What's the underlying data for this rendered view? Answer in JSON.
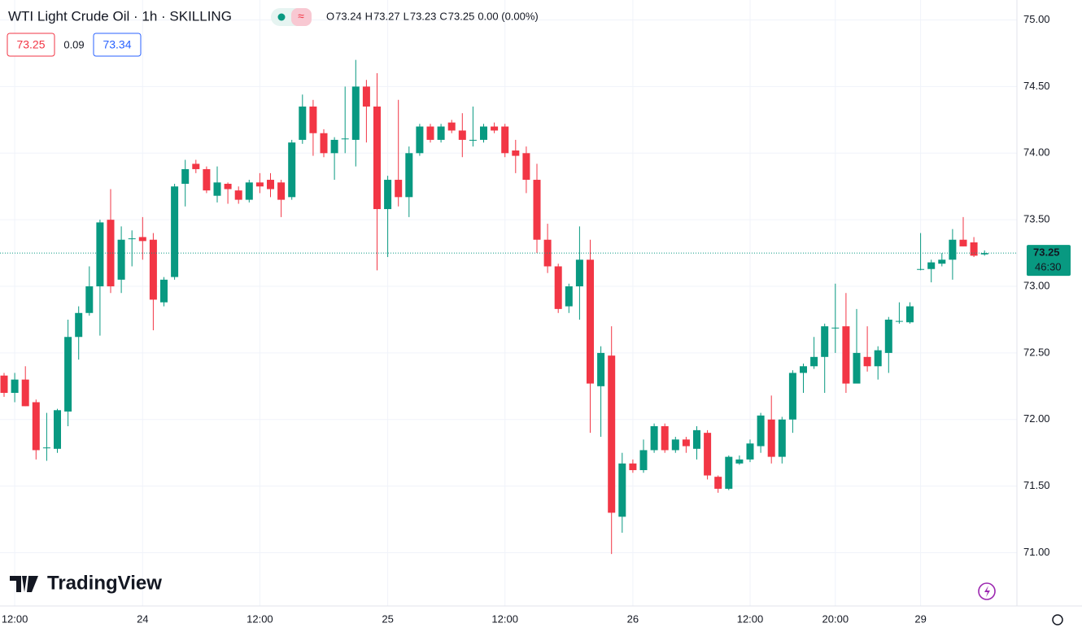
{
  "chart_data": {
    "type": "candlestick",
    "title": "WTI Light Crude Oil · 1h · SKILLING",
    "ohlc_legend": [
      {
        "key": "O",
        "value": "73.24"
      },
      {
        "key": "H",
        "value": "73.27"
      },
      {
        "key": "L",
        "value": "73.23"
      },
      {
        "key": "C",
        "value": "73.25"
      }
    ],
    "change": "0.00 (0.00%)",
    "bid": "73.25",
    "spread": "0.09",
    "ask": "73.34",
    "brand": "TradingView",
    "last_price": {
      "value": 73.25,
      "label": "73.25"
    },
    "countdown": "46:30",
    "up_color": "#089981",
    "down_color": "#f23645",
    "grid": true,
    "categories": [
      null,
      "12:00",
      null,
      null,
      null,
      null,
      null,
      null,
      null,
      null,
      null,
      null,
      null,
      "24",
      null,
      null,
      null,
      null,
      null,
      null,
      null,
      null,
      null,
      null,
      "12:00",
      null,
      null,
      null,
      null,
      null,
      null,
      null,
      null,
      null,
      null,
      null,
      "25",
      null,
      null,
      null,
      null,
      null,
      null,
      null,
      null,
      null,
      null,
      "12:00",
      null,
      null,
      null,
      null,
      null,
      null,
      null,
      null,
      null,
      null,
      null,
      "26",
      null,
      null,
      null,
      null,
      null,
      null,
      null,
      null,
      null,
      null,
      "12:00",
      null,
      null,
      null,
      null,
      null,
      null,
      null,
      "20:00",
      null,
      null,
      null,
      null,
      null,
      null,
      null,
      "29",
      null,
      null,
      null,
      null,
      null,
      null
    ],
    "open": [
      72.33,
      72.2,
      72.3,
      72.13,
      71.79,
      71.78,
      72.06,
      72.62,
      72.8,
      73.0,
      73.5,
      73.05,
      73.36,
      73.37,
      73.35,
      72.88,
      73.07,
      73.77,
      73.92,
      73.88,
      73.68,
      73.77,
      73.72,
      73.65,
      73.78,
      73.8,
      73.78,
      73.67,
      74.1,
      74.35,
      74.15,
      74.0,
      74.11,
      74.1,
      74.5,
      74.35,
      73.58,
      73.8,
      73.67,
      74.0,
      74.2,
      74.1,
      74.23,
      74.17,
      74.1,
      74.1,
      74.2,
      74.2,
      74.02,
      74.0,
      73.8,
      73.35,
      73.15,
      72.85,
      73.0,
      73.2,
      72.25,
      72.48,
      71.27,
      71.67,
      71.62,
      71.77,
      71.95,
      71.77,
      71.85,
      71.78,
      71.9,
      71.57,
      71.48,
      71.67,
      71.7,
      71.8,
      72.0,
      71.72,
      72.0,
      72.35,
      72.4,
      72.47,
      72.69,
      72.7,
      72.27,
      72.47,
      72.4,
      72.5,
      72.74,
      72.73,
      73.13,
      73.13,
      73.17,
      73.2,
      73.35,
      73.33,
      73.24
    ],
    "high": [
      72.35,
      72.35,
      72.4,
      72.15,
      72.05,
      72.08,
      72.75,
      72.85,
      73.15,
      73.5,
      73.73,
      73.45,
      73.42,
      73.52,
      73.4,
      73.07,
      73.77,
      73.95,
      73.95,
      73.9,
      73.9,
      73.78,
      73.75,
      73.8,
      73.85,
      73.85,
      73.8,
      74.1,
      74.44,
      74.4,
      74.18,
      74.12,
      74.5,
      74.7,
      74.55,
      74.6,
      73.83,
      74.4,
      74.05,
      74.22,
      74.22,
      74.22,
      74.25,
      74.3,
      74.35,
      74.22,
      74.23,
      74.22,
      74.1,
      74.05,
      73.92,
      73.47,
      73.17,
      73.02,
      73.45,
      73.35,
      72.55,
      72.7,
      71.75,
      71.7,
      71.85,
      71.97,
      71.97,
      71.87,
      71.87,
      71.95,
      71.92,
      71.58,
      71.73,
      71.73,
      71.85,
      72.05,
      72.18,
      72.02,
      72.37,
      72.42,
      72.62,
      72.72,
      73.02,
      72.95,
      72.83,
      72.7,
      72.55,
      72.77,
      72.88,
      72.88,
      73.4,
      73.2,
      73.25,
      73.43,
      73.52,
      73.37,
      73.27
    ],
    "low": [
      72.17,
      72.13,
      72.1,
      71.7,
      71.69,
      71.75,
      71.95,
      72.45,
      72.78,
      72.63,
      72.95,
      72.95,
      73.15,
      73.2,
      72.67,
      72.85,
      73.05,
      73.6,
      73.85,
      73.7,
      73.63,
      73.62,
      73.62,
      73.63,
      73.7,
      73.67,
      73.52,
      73.65,
      74.07,
      73.98,
      73.97,
      73.8,
      74.0,
      73.9,
      74.08,
      73.12,
      73.22,
      73.6,
      73.52,
      73.98,
      74.08,
      74.08,
      74.15,
      73.97,
      74.05,
      74.08,
      74.15,
      73.97,
      73.85,
      73.7,
      73.25,
      73.1,
      72.8,
      72.8,
      72.75,
      71.9,
      71.87,
      70.99,
      71.15,
      71.6,
      71.6,
      71.75,
      71.75,
      71.75,
      71.75,
      71.7,
      71.55,
      71.45,
      71.47,
      71.66,
      71.68,
      71.75,
      71.67,
      71.67,
      71.9,
      72.2,
      72.38,
      72.2,
      72.5,
      72.2,
      72.27,
      72.36,
      72.3,
      72.35,
      72.72,
      72.72,
      73.12,
      73.03,
      73.15,
      73.05,
      73.3,
      73.22,
      73.23
    ],
    "close": [
      72.2,
      72.3,
      72.1,
      71.77,
      71.79,
      72.07,
      72.62,
      72.8,
      73.0,
      73.48,
      73.0,
      73.35,
      73.36,
      73.34,
      72.9,
      73.05,
      73.75,
      73.88,
      73.88,
      73.72,
      73.78,
      73.73,
      73.65,
      73.78,
      73.75,
      73.73,
      73.65,
      74.08,
      74.35,
      74.15,
      74.0,
      74.1,
      74.11,
      74.5,
      74.35,
      73.58,
      73.8,
      73.67,
      74.0,
      74.2,
      74.1,
      74.2,
      74.17,
      74.1,
      74.1,
      74.2,
      74.17,
      74.0,
      73.98,
      73.8,
      73.35,
      73.15,
      72.83,
      73.0,
      73.2,
      72.27,
      72.5,
      71.3,
      71.67,
      71.62,
      71.77,
      71.95,
      71.77,
      71.85,
      71.8,
      71.92,
      71.58,
      71.48,
      71.72,
      71.7,
      71.82,
      72.03,
      71.72,
      72.0,
      72.35,
      72.4,
      72.47,
      72.7,
      72.69,
      72.27,
      72.5,
      72.4,
      72.52,
      72.75,
      72.74,
      72.85,
      73.13,
      73.18,
      73.2,
      73.35,
      73.3,
      73.23,
      73.25
    ],
    "ylim": [
      70.6,
      75.15
    ],
    "yticks": [
      {
        "value": 71,
        "label": "71.00"
      },
      {
        "value": 71.5,
        "label": "71.50"
      },
      {
        "value": 72,
        "label": "72.00"
      },
      {
        "value": 72.5,
        "label": "72.50"
      },
      {
        "value": 73,
        "label": "73.00"
      },
      {
        "value": 73.5,
        "label": "73.50"
      },
      {
        "value": 74,
        "label": "74.00"
      },
      {
        "value": 74.5,
        "label": "74.50"
      },
      {
        "value": 75,
        "label": "75.00"
      }
    ]
  }
}
